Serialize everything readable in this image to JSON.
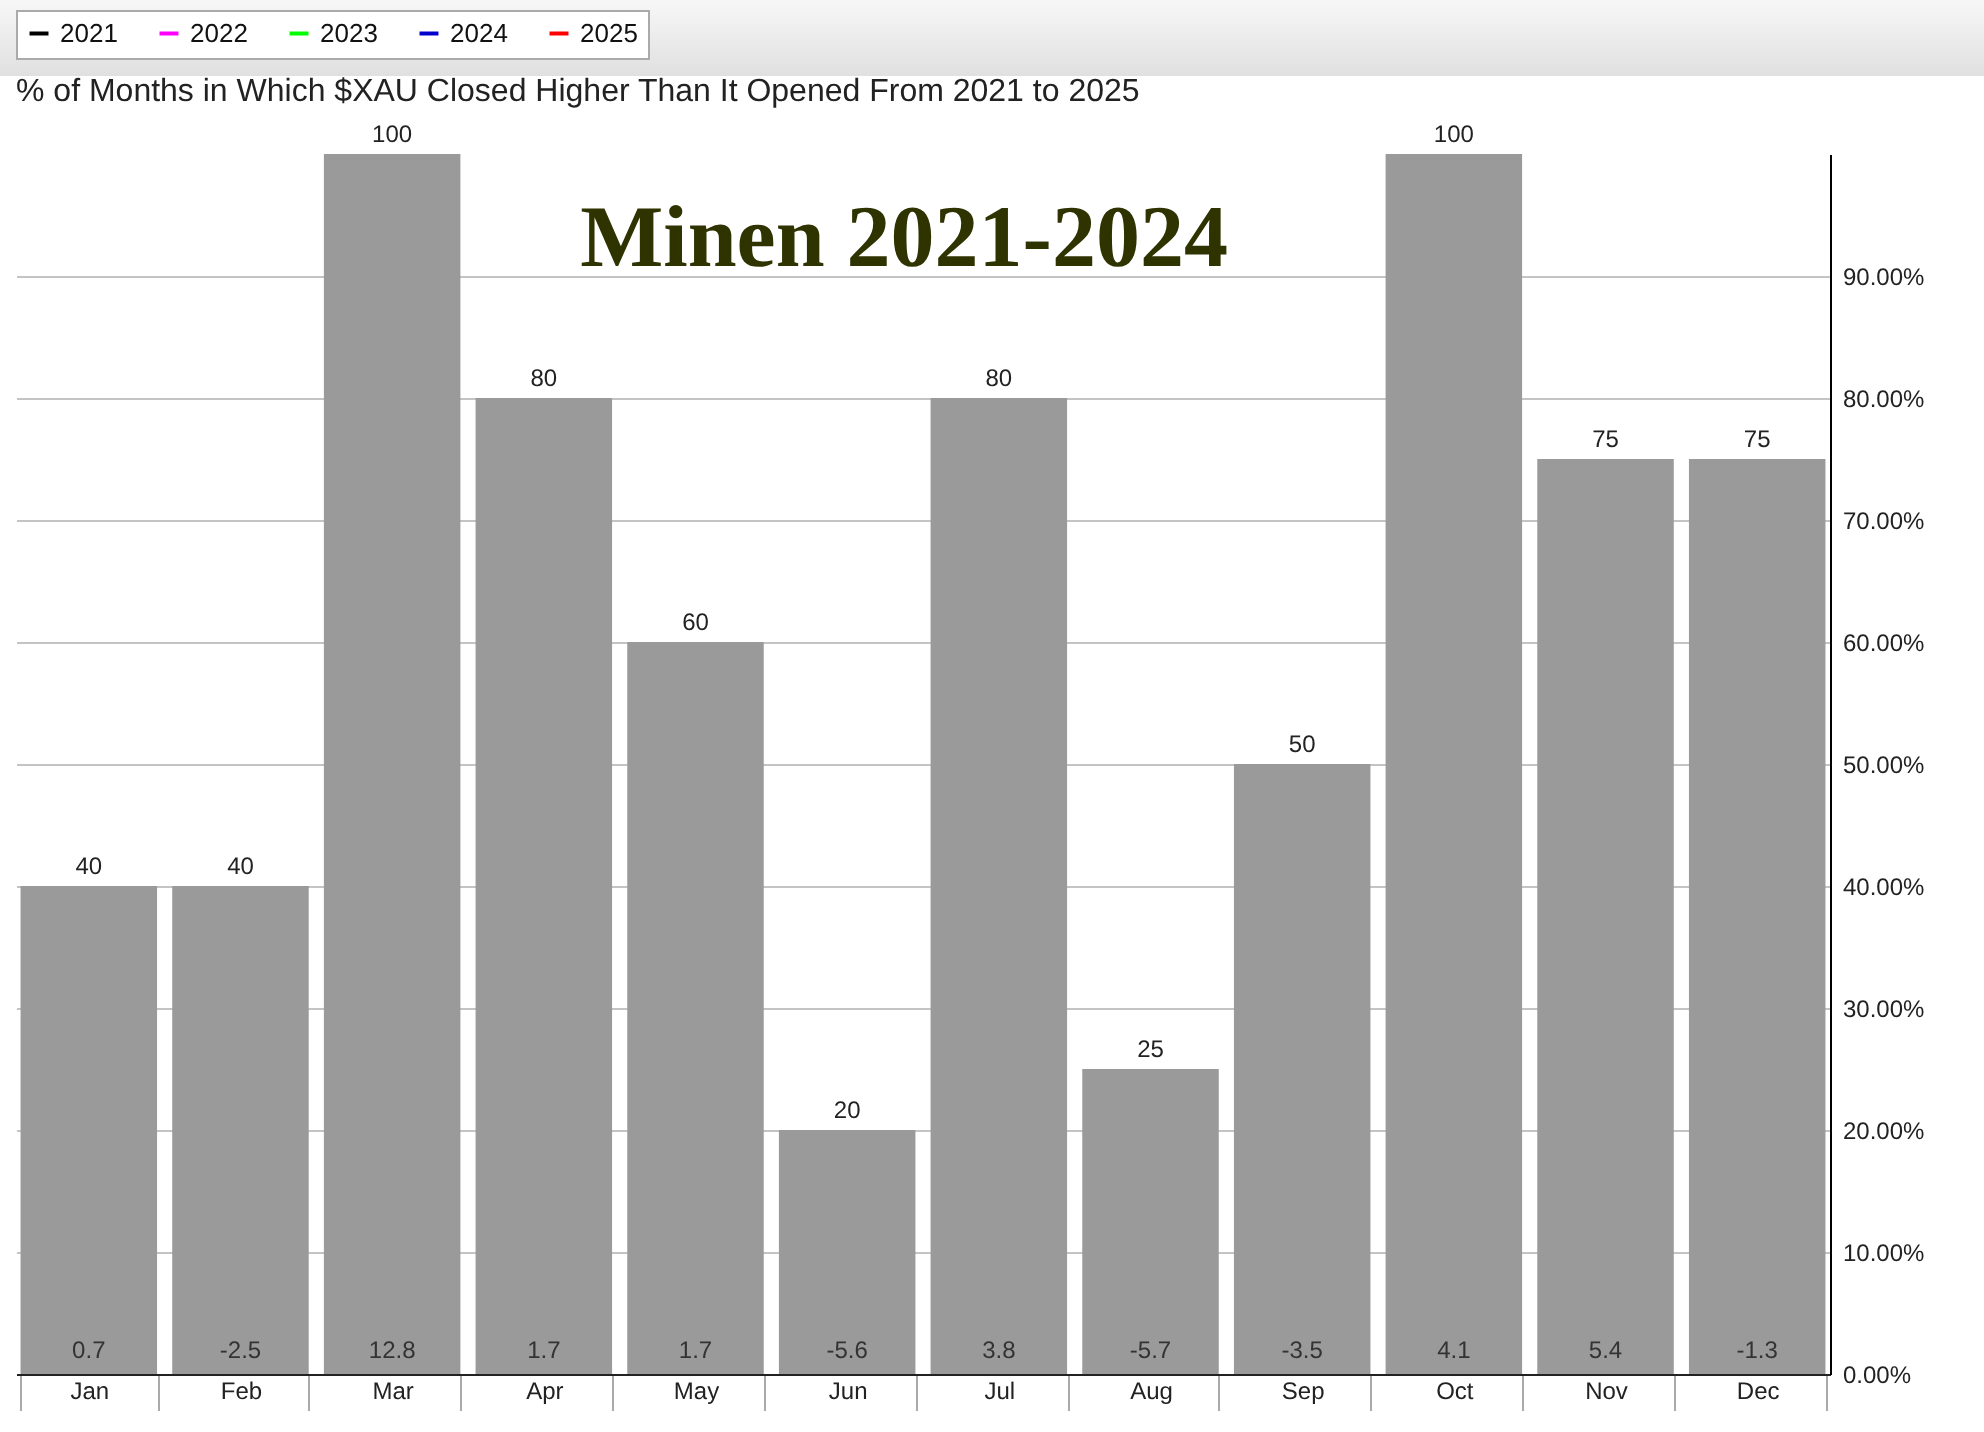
{
  "chart_data": {
    "type": "bar",
    "title": "% of Months in Which $XAU Closed Higher Than It Opened From 2021 to 2025",
    "categories": [
      "Jan",
      "Feb",
      "Mar",
      "Apr",
      "May",
      "Jun",
      "Jul",
      "Aug",
      "Sep",
      "Oct",
      "Nov",
      "Dec"
    ],
    "series": [
      {
        "color": "#9a9a9a",
        "values": [
          40,
          40,
          100,
          80,
          60,
          20,
          80,
          25,
          50,
          100,
          75,
          75
        ]
      },
      {
        "type": "line",
        "name": "2021",
        "color": "#000000",
        "values": [
          null,
          null,
          null,
          null,
          null,
          null,
          null,
          null,
          null,
          null,
          null,
          null
        ]
      },
      {
        "type": "line",
        "name": "2022",
        "color": "#ff00ff",
        "values": [
          null,
          null,
          null,
          null,
          null,
          null,
          null,
          null,
          null,
          null,
          null,
          null
        ]
      },
      {
        "type": "line",
        "name": "2023",
        "color": "#00ff00",
        "values": [
          null,
          null,
          null,
          null,
          null,
          null,
          null,
          null,
          null,
          null,
          null,
          null
        ]
      },
      {
        "type": "line",
        "name": "2024",
        "color": "#0000cc",
        "values": [
          null,
          null,
          null,
          null,
          null,
          null,
          null,
          null,
          null,
          null,
          null,
          null
        ]
      },
      {
        "type": "line",
        "name": "2025",
        "color": "#ff0000",
        "values": [
          null,
          null,
          null,
          null,
          null,
          null,
          null,
          null,
          null,
          null,
          null,
          null
        ]
      }
    ],
    "ylim": [
      0,
      100
    ],
    "yticks": [
      {
        "value": 0,
        "label": "0.00%"
      },
      {
        "value": 10,
        "label": "10.00%"
      },
      {
        "value": 20,
        "label": "20.00%"
      },
      {
        "value": 30,
        "label": "30.00%"
      },
      {
        "value": 40,
        "label": "40.00%"
      },
      {
        "value": 50,
        "label": "50.00%"
      },
      {
        "value": 60,
        "label": "60.00%"
      },
      {
        "value": 70,
        "label": "70.00%"
      },
      {
        "value": 80,
        "label": "80.00%"
      },
      {
        "value": 90,
        "label": "90.00%"
      }
    ],
    "grid": "y",
    "legend": "top left",
    "data_labels": true,
    "annotations": [
      "Minen 2021-2024",
      "0.7",
      "-2.5",
      "12.8",
      "1.7",
      "1.7",
      "-5.6",
      "3.8",
      "-5.7",
      "-3.5",
      "4.1",
      "5.4",
      "-1.3"
    ]
  }
}
